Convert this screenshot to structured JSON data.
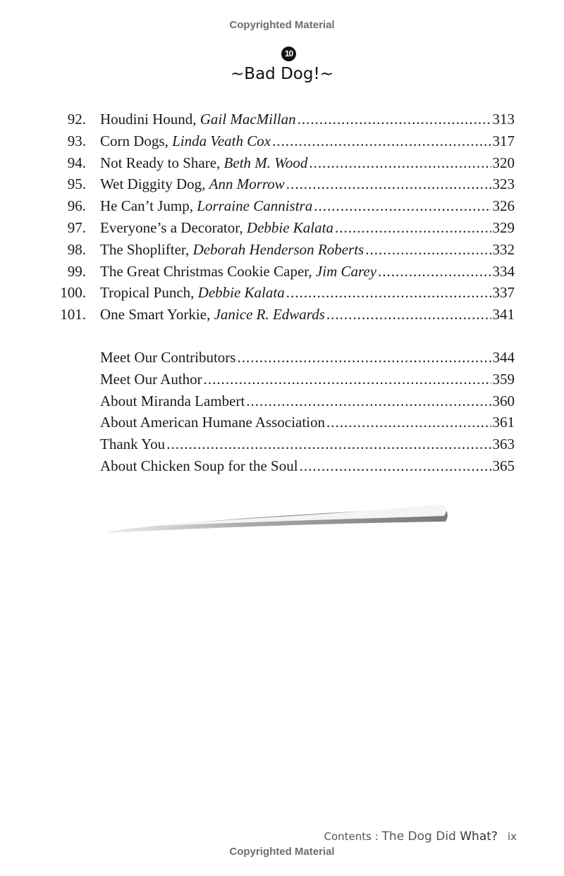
{
  "watermark_top": "Copyrighted Material",
  "watermark_bottom": "Copyrighted Material",
  "chapter": {
    "number": "10",
    "title": "~Bad Dog!~"
  },
  "entries": [
    {
      "num": "92.",
      "title": "Houdini Hound, ",
      "author": "Gail MacMillan",
      "page": "313"
    },
    {
      "num": "93.",
      "title": "Corn Dogs, ",
      "author": "Linda Veath Cox",
      "page": "317"
    },
    {
      "num": "94.",
      "title": "Not Ready to Share, ",
      "author": "Beth M. Wood",
      "page": "320"
    },
    {
      "num": "95.",
      "title": "Wet Diggity Dog, ",
      "author": "Ann Morrow",
      "page": "323"
    },
    {
      "num": "96.",
      "title": "He Can’t Jump, ",
      "author": "Lorraine Cannistra",
      "page": "326"
    },
    {
      "num": "97.",
      "title": "Everyone’s a Decorator, ",
      "author": "Debbie Kalata",
      "page": "329"
    },
    {
      "num": "98.",
      "title": "The Shoplifter, ",
      "author": "Deborah Henderson Roberts",
      "page": "332"
    },
    {
      "num": "99.",
      "title": "The Great Christmas Cookie Caper, ",
      "author": "Jim Carey",
      "page": "334"
    },
    {
      "num": "100.",
      "title": "Tropical Punch, ",
      "author": "Debbie Kalata",
      "page": "337"
    },
    {
      "num": "101.",
      "title": "One Smart Yorkie, ",
      "author": "Janice R. Edwards",
      "page": "341"
    }
  ],
  "backmatter": [
    {
      "title": "Meet Our Contributors",
      "page": "344"
    },
    {
      "title": "Meet Our Author",
      "page": "359"
    },
    {
      "title": "About Miranda Lambert",
      "page": "360"
    },
    {
      "title": "About American Humane Association",
      "page": "361"
    },
    {
      "title": "Thank You",
      "page": "363"
    },
    {
      "title": "About Chicken Soup for the Soul",
      "page": "365"
    }
  ],
  "footer": {
    "section": "Contents : ",
    "book_a": "The Dog Did ",
    "book_b": "What?",
    "page_num": "ix"
  }
}
